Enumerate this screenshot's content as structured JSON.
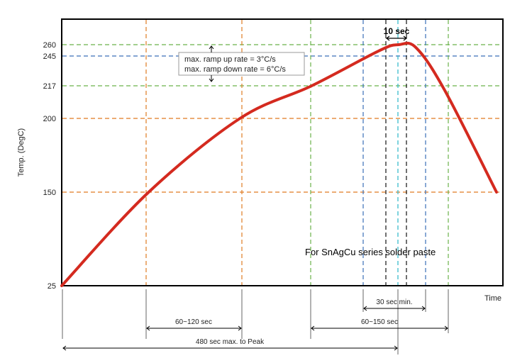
{
  "chart_data": {
    "type": "line",
    "ylabel": "Temp. (DegC)",
    "xlabel": "Time",
    "y_ticks": [
      "25",
      "150",
      "200",
      "217",
      "245",
      "260"
    ],
    "y_tick_values": [
      25,
      150,
      200,
      217,
      245,
      260
    ],
    "annotation": "For SnAgCu series solder paste",
    "peak_window_label": "10 sec",
    "ramp_note": [
      "max. ramp up rate = 3°C/s",
      "max. ramp down rate = 6°C/s"
    ],
    "intervals": [
      {
        "label": "60~120 sec",
        "from_temp": 150,
        "to_temp": 200
      },
      {
        "label": "60~150 sec",
        "from_temp": 217,
        "to_temp": 217
      },
      {
        "label": "30 sec min.",
        "from_temp": 245,
        "to_temp": 245
      },
      {
        "label": "480 sec max. to Peak",
        "from_temp": 25,
        "to_temp": 260
      }
    ],
    "threshold_lines": [
      {
        "temp": 260,
        "color": "#6ab24a"
      },
      {
        "temp": 245,
        "color": "#3a6fb8"
      },
      {
        "temp": 217,
        "color": "#6ab24a"
      },
      {
        "temp": 200,
        "color": "#e07b22"
      },
      {
        "temp": 150,
        "color": "#e07b22"
      }
    ],
    "curve": [
      {
        "t": 0,
        "temp": 25
      },
      {
        "t": 0.2,
        "temp": 150
      },
      {
        "t": 0.41,
        "temp": 200
      },
      {
        "t": 0.575,
        "temp": 217
      },
      {
        "t": 0.73,
        "temp": 252
      },
      {
        "t": 0.775,
        "temp": 260
      },
      {
        "t": 0.815,
        "temp": 256
      },
      {
        "t": 0.88,
        "temp": 215
      },
      {
        "t": 1.0,
        "temp": 150
      }
    ],
    "curve_color": "#d42a1f"
  }
}
